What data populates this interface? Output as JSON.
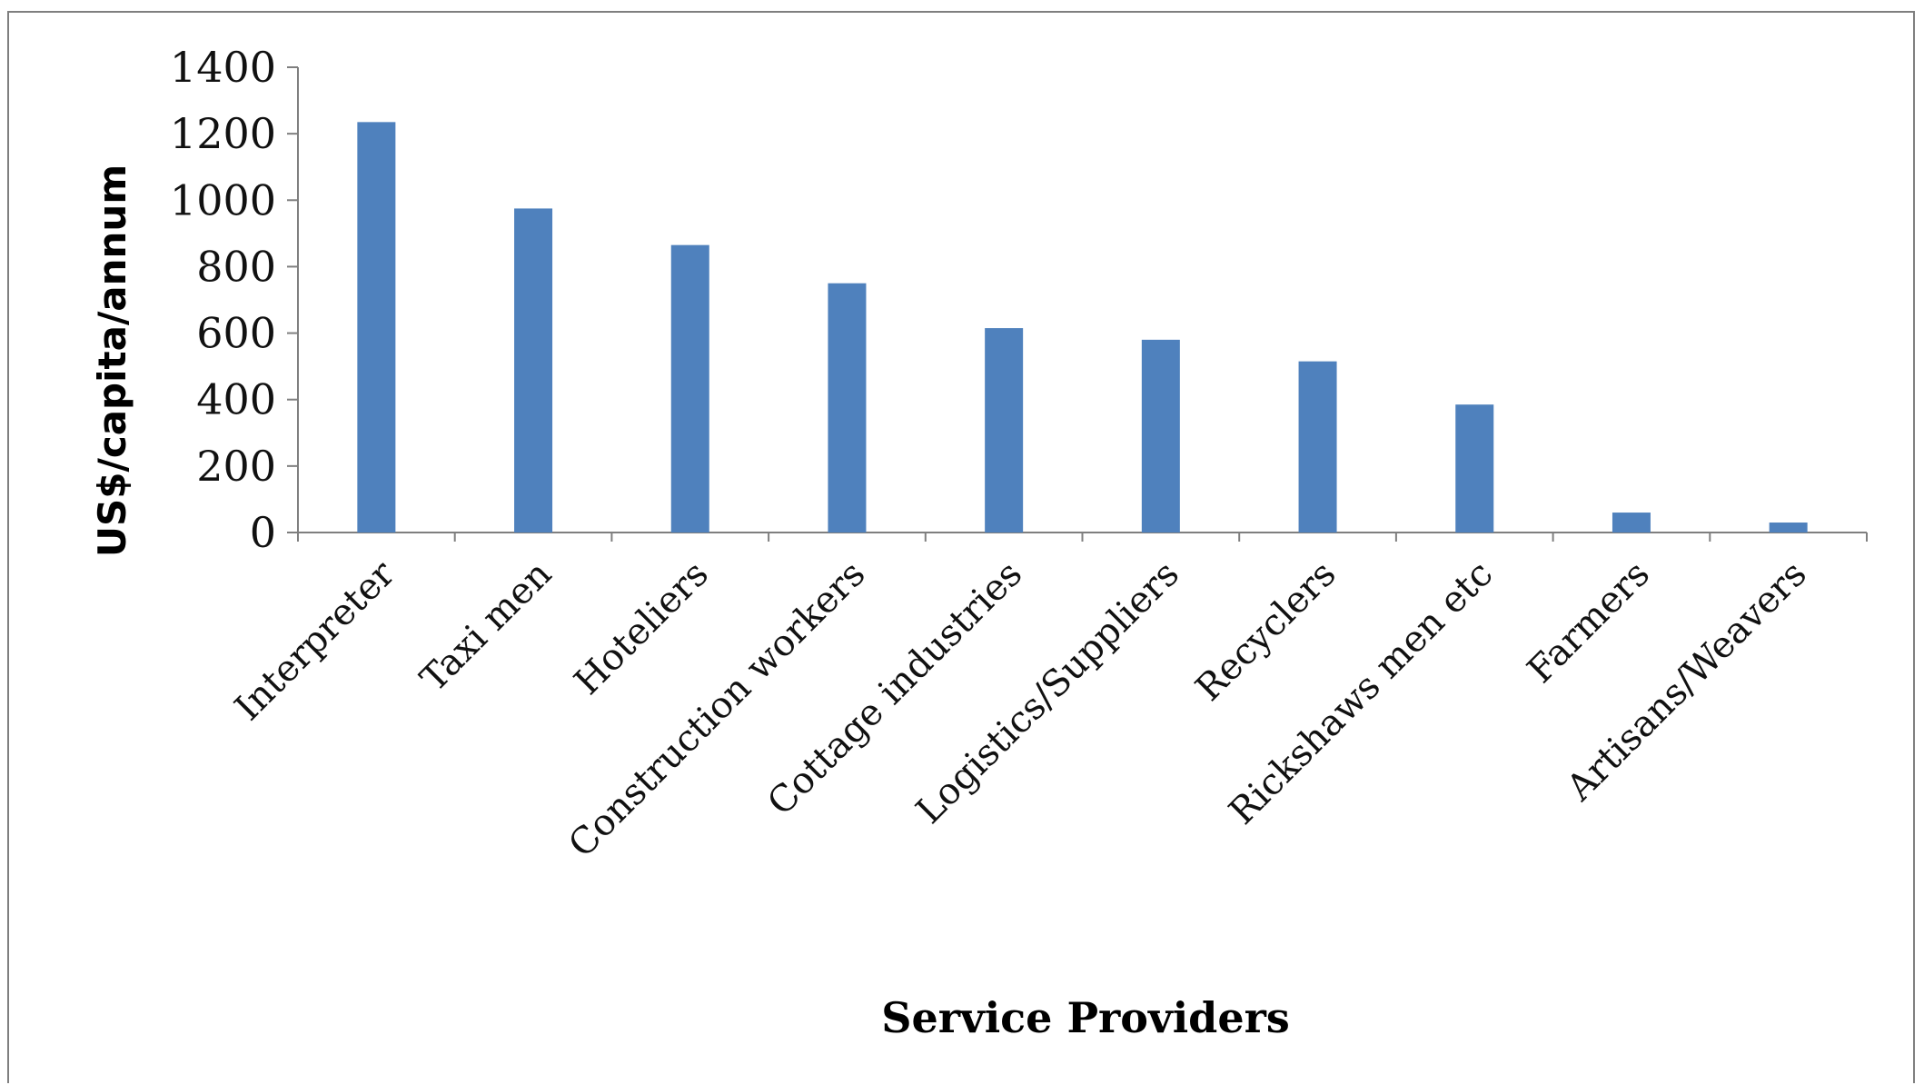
{
  "chart_data": {
    "type": "bar",
    "title": "",
    "xlabel": "Service Providers",
    "ylabel": "US$/capita/annum",
    "categories": [
      "Interpreter",
      "Taxi men",
      "Hoteliers",
      "Construction workers",
      "Cottage industries",
      "Logistics/Suppliers",
      "Recyclers",
      "Rickshaws men etc",
      "Farmers",
      "Artisans/Weavers"
    ],
    "values": [
      1235,
      975,
      865,
      750,
      615,
      580,
      515,
      385,
      60,
      30
    ],
    "ylim": [
      0,
      1400
    ],
    "yticks": [
      0,
      200,
      400,
      600,
      800,
      1000,
      1200,
      1400
    ],
    "grid": false,
    "legend": "none",
    "bar_color": "#4f81bd",
    "axis_color": "#7f7f7f"
  }
}
